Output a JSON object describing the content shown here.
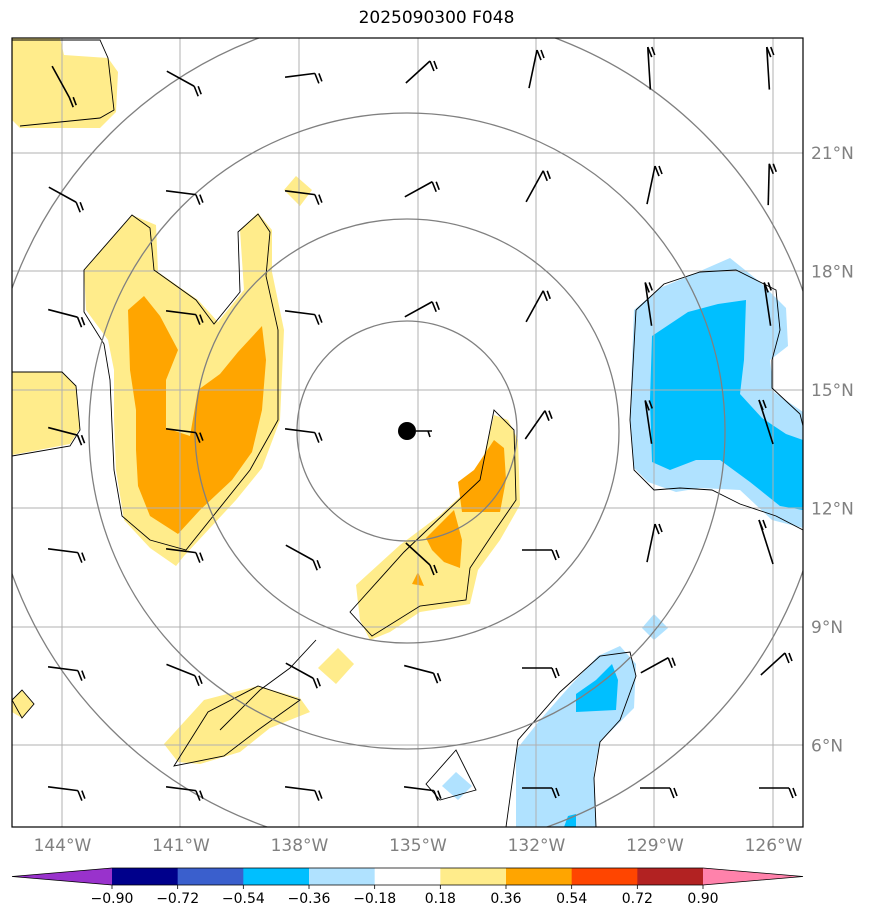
{
  "title": "2025090300 F048",
  "lat_labels": [
    {
      "lat": 21,
      "text": "21°N"
    },
    {
      "lat": 18,
      "text": "18°N"
    },
    {
      "lat": 15,
      "text": "15°N"
    },
    {
      "lat": 12,
      "text": "12°N"
    },
    {
      "lat": 9,
      "text": "9°N"
    },
    {
      "lat": 6,
      "text": "6°N"
    }
  ],
  "lon_labels": [
    {
      "lon": -144,
      "text": "144°W"
    },
    {
      "lon": -141,
      "text": "141°W"
    },
    {
      "lon": -138,
      "text": "138°W"
    },
    {
      "lon": -135,
      "text": "135°W"
    },
    {
      "lon": -132,
      "text": "132°W"
    },
    {
      "lon": -129,
      "text": "129°W"
    },
    {
      "lon": -126,
      "text": "126°W"
    }
  ],
  "colorbar": {
    "colors": [
      "#9932CC",
      "#00008B",
      "#3A5FCD",
      "#00BFFF",
      "#B0E2FF",
      "#FFFFFF",
      "#FFEC8B",
      "#FFA500",
      "#FF4500",
      "#B22222",
      "#FF82AB"
    ],
    "tick_labels": [
      "−0.90",
      "−0.72",
      "−0.54",
      "−0.36",
      "−0.18",
      "0.18",
      "0.36",
      "0.54",
      "0.72",
      "0.90"
    ]
  },
  "colors": {
    "grid": "#b0b0b0",
    "range_rings": "#808080",
    "axis_label": "#808080",
    "frame": "#000000"
  }
}
